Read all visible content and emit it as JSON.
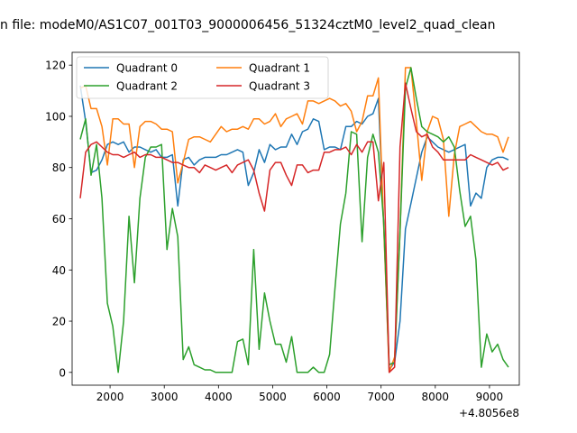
{
  "chart_data": {
    "type": "line",
    "title": "n file: modeM0/AS1C07_001T03_9000006456_51324cztM0_level2_quad_clean",
    "xlabel": "",
    "ylabel": "",
    "x_offset_label": "+4.8056e8",
    "xlim": [
      1300,
      9550
    ],
    "ylim": [
      -5,
      125
    ],
    "xticks": [
      2000,
      3000,
      4000,
      5000,
      6000,
      7000,
      8000,
      9000
    ],
    "yticks": [
      0,
      20,
      40,
      60,
      80,
      100,
      120
    ],
    "grid": false,
    "legend_position": "top-left",
    "legend_columns": 2,
    "x": [
      1450,
      1550,
      1650,
      1750,
      1850,
      1950,
      2050,
      2150,
      2250,
      2350,
      2450,
      2550,
      2650,
      2750,
      2850,
      2950,
      3050,
      3150,
      3250,
      3350,
      3450,
      3550,
      3650,
      3750,
      3850,
      3950,
      4050,
      4150,
      4250,
      4350,
      4450,
      4550,
      4650,
      4750,
      4850,
      4950,
      5050,
      5150,
      5250,
      5350,
      5450,
      5550,
      5650,
      5750,
      5850,
      5950,
      6050,
      6150,
      6250,
      6350,
      6450,
      6550,
      6650,
      6750,
      6850,
      6950,
      7050,
      7150,
      7250,
      7350,
      7450,
      7550,
      7650,
      7750,
      7850,
      7950,
      8050,
      8150,
      8250,
      8350,
      8450,
      8550,
      8650,
      8750,
      8850,
      8950,
      9050,
      9150,
      9250,
      9350
    ],
    "series": [
      {
        "name": "Quadrant 0",
        "color": "#1f77b4",
        "values": [
          112,
          98,
          78,
          79,
          83,
          89,
          90,
          89,
          90,
          86,
          88,
          88,
          87,
          86,
          87,
          84,
          84,
          85,
          65,
          83,
          84,
          81,
          83,
          84,
          84,
          84,
          85,
          85,
          86,
          87,
          86,
          73,
          78,
          87,
          82,
          89,
          87,
          88,
          88,
          93,
          89,
          94,
          95,
          99,
          98,
          87,
          88,
          88,
          87,
          96,
          96,
          98,
          97,
          100,
          101,
          107,
          57,
          1,
          4,
          20,
          56,
          66,
          76,
          86,
          92,
          90,
          88,
          87,
          86,
          87,
          88,
          89,
          65,
          70,
          68,
          80,
          83,
          84,
          84,
          83
        ]
      },
      {
        "name": "Quadrant 1",
        "color": "#ff7f0e",
        "values": [
          111,
          112,
          103,
          103,
          96,
          81,
          99,
          99,
          97,
          97,
          80,
          96,
          98,
          98,
          97,
          95,
          95,
          94,
          74,
          82,
          91,
          92,
          92,
          91,
          90,
          93,
          96,
          94,
          95,
          95,
          96,
          95,
          99,
          99,
          97,
          98,
          101,
          96,
          99,
          100,
          101,
          97,
          106,
          106,
          105,
          106,
          107,
          106,
          104,
          105,
          102,
          94,
          98,
          108,
          108,
          115,
          56,
          0,
          6,
          55,
          119,
          119,
          98,
          75,
          94,
          100,
          99,
          91,
          61,
          85,
          96,
          97,
          98,
          96,
          94,
          93,
          93,
          92,
          86,
          92
        ]
      },
      {
        "name": "Quadrant 2",
        "color": "#2ca02c",
        "values": [
          91,
          99,
          77,
          89,
          68,
          27,
          18,
          0,
          20,
          61,
          35,
          68,
          84,
          88,
          88,
          89,
          48,
          64,
          53,
          5,
          10,
          3,
          2,
          1,
          1,
          0,
          0,
          0,
          0,
          12,
          13,
          3,
          48,
          9,
          31,
          20,
          11,
          11,
          4,
          14,
          0,
          0,
          0,
          2,
          0,
          0,
          7,
          33,
          58,
          70,
          94,
          93,
          51,
          84,
          93,
          86,
          58,
          3,
          4,
          55,
          111,
          119,
          107,
          96,
          94,
          93,
          92,
          90,
          92,
          88,
          71,
          57,
          61,
          44,
          2,
          15,
          8,
          11,
          5,
          2
        ]
      },
      {
        "name": "Quadrant 3",
        "color": "#d62728",
        "values": [
          68,
          86,
          89,
          90,
          88,
          86,
          85,
          85,
          84,
          85,
          86,
          84,
          85,
          85,
          84,
          84,
          83,
          82,
          82,
          81,
          80,
          80,
          78,
          81,
          80,
          79,
          80,
          81,
          78,
          81,
          82,
          83,
          79,
          70,
          63,
          79,
          82,
          82,
          77,
          73,
          81,
          81,
          78,
          79,
          79,
          86,
          86,
          87,
          87,
          88,
          85,
          89,
          86,
          90,
          90,
          67,
          82,
          0,
          2,
          88,
          113,
          103,
          94,
          92,
          93,
          88,
          86,
          83,
          83,
          83,
          83,
          83,
          85,
          84,
          83,
          82,
          81,
          82,
          79,
          80
        ]
      }
    ]
  }
}
